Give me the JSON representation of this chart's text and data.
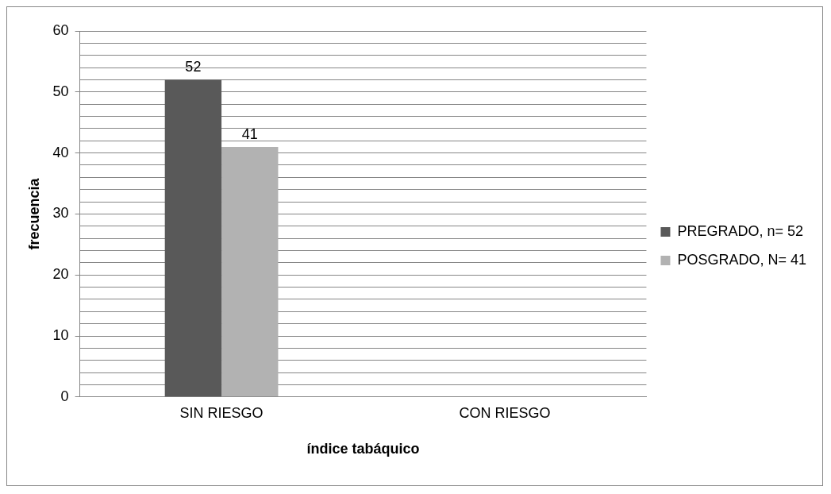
{
  "chart_data": {
    "type": "bar",
    "xlabel": "índice tabáquico",
    "ylabel": "frecuencia",
    "categories": [
      "SIN RIESGO",
      "CON RIESGO"
    ],
    "series": [
      {
        "name": "PREGRADO, n= 52",
        "color": "#595959",
        "values": [
          52,
          0
        ],
        "value_labels": [
          "52",
          null
        ]
      },
      {
        "name": "POSGRADO, N= 41",
        "color": "#b2b2b2",
        "values": [
          41,
          0
        ],
        "value_labels": [
          "41",
          null
        ]
      }
    ],
    "ylim": [
      0,
      60
    ],
    "yticks": [
      0,
      {
        "value": 2,
        "label": null
      },
      {
        "value": 4,
        "label": null
      },
      {
        "value": 6,
        "label": null
      },
      {
        "value": 8,
        "label": null
      },
      10,
      {
        "value": 12,
        "label": null
      },
      {
        "value": 14,
        "label": null
      },
      {
        "value": 16,
        "label": null
      },
      {
        "value": 18,
        "label": null
      },
      20,
      {
        "value": 22,
        "label": null
      },
      {
        "value": 24,
        "label": null
      },
      {
        "value": 26,
        "label": null
      },
      {
        "value": 28,
        "label": null
      },
      30,
      {
        "value": 32,
        "label": null
      },
      {
        "value": 34,
        "label": null
      },
      {
        "value": 36,
        "label": null
      },
      {
        "value": 38,
        "label": null
      },
      40,
      {
        "value": 42,
        "label": null
      },
      {
        "value": 44,
        "label": null
      },
      {
        "value": 46,
        "label": null
      },
      {
        "value": 48,
        "label": null
      },
      50,
      {
        "value": 52,
        "label": null
      },
      {
        "value": 54,
        "label": null
      },
      {
        "value": 56,
        "label": null
      },
      {
        "value": 58,
        "label": null
      },
      60
    ],
    "grid": "y",
    "legend": "right"
  }
}
